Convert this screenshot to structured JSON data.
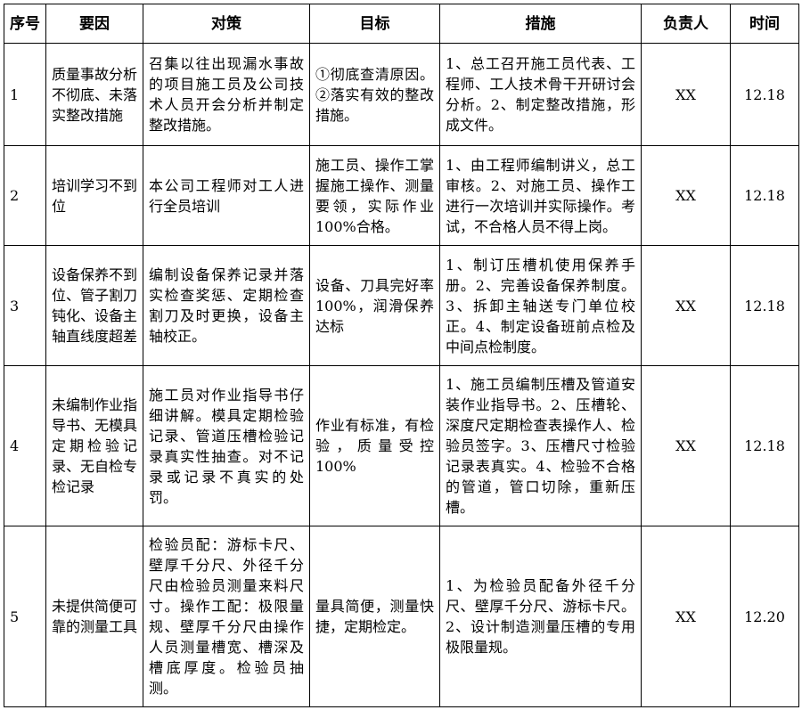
{
  "headers": [
    "序号",
    "要因",
    "对策",
    "目标",
    "措施",
    "负责人",
    "时间"
  ],
  "rows": [
    {
      "no": "1",
      "cause": "质量事故分析不彻底、未落实整改措施",
      "countermeasure": "召集以往出现漏水事故的项目施工员及公司技术人员开会分析并制定整改措施。",
      "target": "①彻底查清原因。②落实有效的整改措施。",
      "measures": "1、总工召开施工员代表、工程师、工人技术骨干开研讨会分析。2、制定整改措施，形成文件。",
      "owner": "XX",
      "time": "12.18"
    },
    {
      "no": "2",
      "cause": "培训学习不到位",
      "countermeasure": "本公司工程师对工人进行全员培训",
      "target": "施工员、操作工掌握施工操作、测量要领，实际作业100%合格。",
      "measures": "1、由工程师编制讲义，总工审核。2、对施工员、操作工进行一次培训并实际操作。考试，不合格人员不得上岗。",
      "owner": "XX",
      "time": "12.18"
    },
    {
      "no": "3",
      "cause": "设备保养不到位、管子割刀钝化、设备主轴直线度超差",
      "countermeasure": "编制设备保养记录并落实检查奖惩、定期检查割刀及时更换，设备主轴校正。",
      "target": "设备、刀具完好率100%，润滑保养达标",
      "measures": "1、制订压槽机使用保养手册。2、完善设备保养制度。3、拆卸主轴送专门单位校正。4、制定设备班前点检及中间点检制度。",
      "owner": "XX",
      "time": "12.18"
    },
    {
      "no": "4",
      "cause": "未编制作业指导书、无模具定期检验记录、无自检专检记录",
      "countermeasure": "施工员对作业指导书仔细讲解。模具定期检验记录、管道压槽检验记录真实性抽查。对不记录或记录不真实的处罚。",
      "target": "作业有标准，有检验，质量受控100%",
      "measures": "1、施工员编制压槽及管道安装作业指导书。2、压槽轮、深度尺定期检查表操作人、检验员签字。3、压槽尺寸检验记录表真实。4、检验不合格的管道，管口切除，重新压槽。",
      "owner": "XX",
      "time": "12.18"
    },
    {
      "no": "5",
      "cause": "未提供简便可靠的测量工具",
      "countermeasure": "检验员配：游标卡尺、壁厚千分尺、外径千分尺由检验员测量来料尺寸。操作工配：极限量规、壁厚千分尺由操作人员测量槽宽、槽深及槽底厚度。检验员抽测。",
      "target": "量具简便，测量快捷，定期检定。",
      "measures": "1、为检验员配备外径千分尺、壁厚千分尺、游标卡尺。2、设计制造测量压槽的专用极限量规。",
      "owner": "XX",
      "time": "12.20"
    }
  ]
}
